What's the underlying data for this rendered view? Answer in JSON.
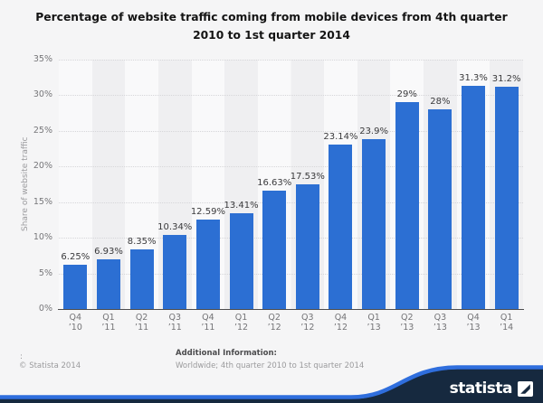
{
  "title_lines": [
    "Percentage of website traffic coming from mobile devices from 4th quarter",
    "2010 to 1st quarter 2014"
  ],
  "chart_data": {
    "type": "bar",
    "title": "Percentage of website traffic coming from mobile devices from 4th quarter 2010 to 1st quarter 2014",
    "categories": [
      [
        "Q4",
        "’10"
      ],
      [
        "Q1",
        "’11"
      ],
      [
        "Q2",
        "’11"
      ],
      [
        "Q3",
        "’11"
      ],
      [
        "Q4",
        "’11"
      ],
      [
        "Q1",
        "’12"
      ],
      [
        "Q2",
        "’12"
      ],
      [
        "Q3",
        "’12"
      ],
      [
        "Q4",
        "’12"
      ],
      [
        "Q1",
        "’13"
      ],
      [
        "Q2",
        "’13"
      ],
      [
        "Q3",
        "’13"
      ],
      [
        "Q4",
        "’13"
      ],
      [
        "Q1",
        "’14"
      ]
    ],
    "values": [
      6.25,
      6.93,
      8.35,
      10.34,
      12.59,
      13.41,
      16.63,
      17.53,
      23.14,
      23.9,
      29,
      28,
      31.3,
      31.2
    ],
    "value_labels": [
      "6.25%",
      "6.93%",
      "8.35%",
      "10.34%",
      "12.59%",
      "13.41%",
      "16.63%",
      "17.53%",
      "23.14%",
      "23.9%",
      "29%",
      "28%",
      "31.3%",
      "31.2%"
    ],
    "xlabel": "",
    "ylabel": "Share of website traffic",
    "ylim": [
      0,
      35
    ],
    "ytick_step": 5,
    "yticks": [
      "0%",
      "5%",
      "10%",
      "15%",
      "20%",
      "25%",
      "30%",
      "35%"
    ],
    "grid": "horizontal-dotted",
    "legend": "none",
    "bar_color": "#2c6fd3"
  },
  "footer": {
    "source_colon": ":",
    "copyright": "© Statista 2014",
    "additional_info_label": "Additional Information:",
    "additional_info": "Worldwide; 4th quarter 2010 to 1st quarter 2014"
  },
  "branding": {
    "logo_text": "statista"
  },
  "colors": {
    "bar": "#2c6fd3",
    "navy": "#16293f",
    "blue_stripe": "#2f6edd"
  }
}
